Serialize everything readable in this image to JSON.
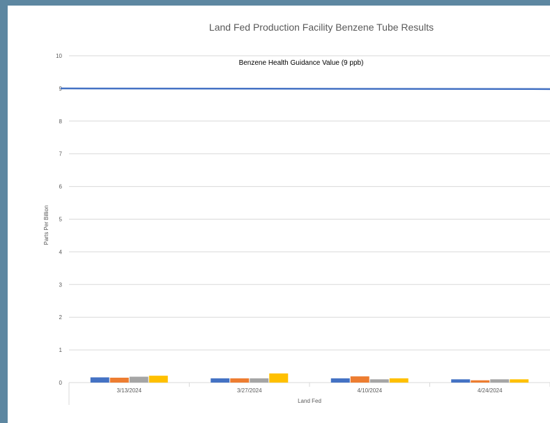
{
  "chart_data": {
    "type": "bar",
    "title": "Land Fed Production Facility Benzene Tube Results",
    "xlabel": "Land Fed",
    "ylabel": "Parts Per Billion",
    "ylim": [
      0,
      10
    ],
    "yticks": [
      "0",
      "1",
      "2",
      "3",
      "4",
      "5",
      "6",
      "7",
      "8",
      "9",
      "10"
    ],
    "categories": [
      "3/13/2024",
      "3/27/2024",
      "4/10/2024",
      "4/24/2024"
    ],
    "series": [
      {
        "color": "#4472c4",
        "values": [
          0.16,
          0.13,
          0.13,
          0.1
        ]
      },
      {
        "color": "#ed7d31",
        "values": [
          0.15,
          0.13,
          0.19,
          0.07
        ]
      },
      {
        "color": "#a5a5a5",
        "values": [
          0.18,
          0.13,
          0.1,
          0.1
        ]
      },
      {
        "color": "#ffc000",
        "values": [
          0.21,
          0.28,
          0.13,
          0.1
        ]
      }
    ],
    "reference_line": {
      "label": "Benzene Health Guidance Value (9 ppb)",
      "value": 9,
      "end_value": 8.98,
      "color": "#4472c4"
    },
    "grid": true,
    "gridline_color": "#d9d9d9"
  }
}
